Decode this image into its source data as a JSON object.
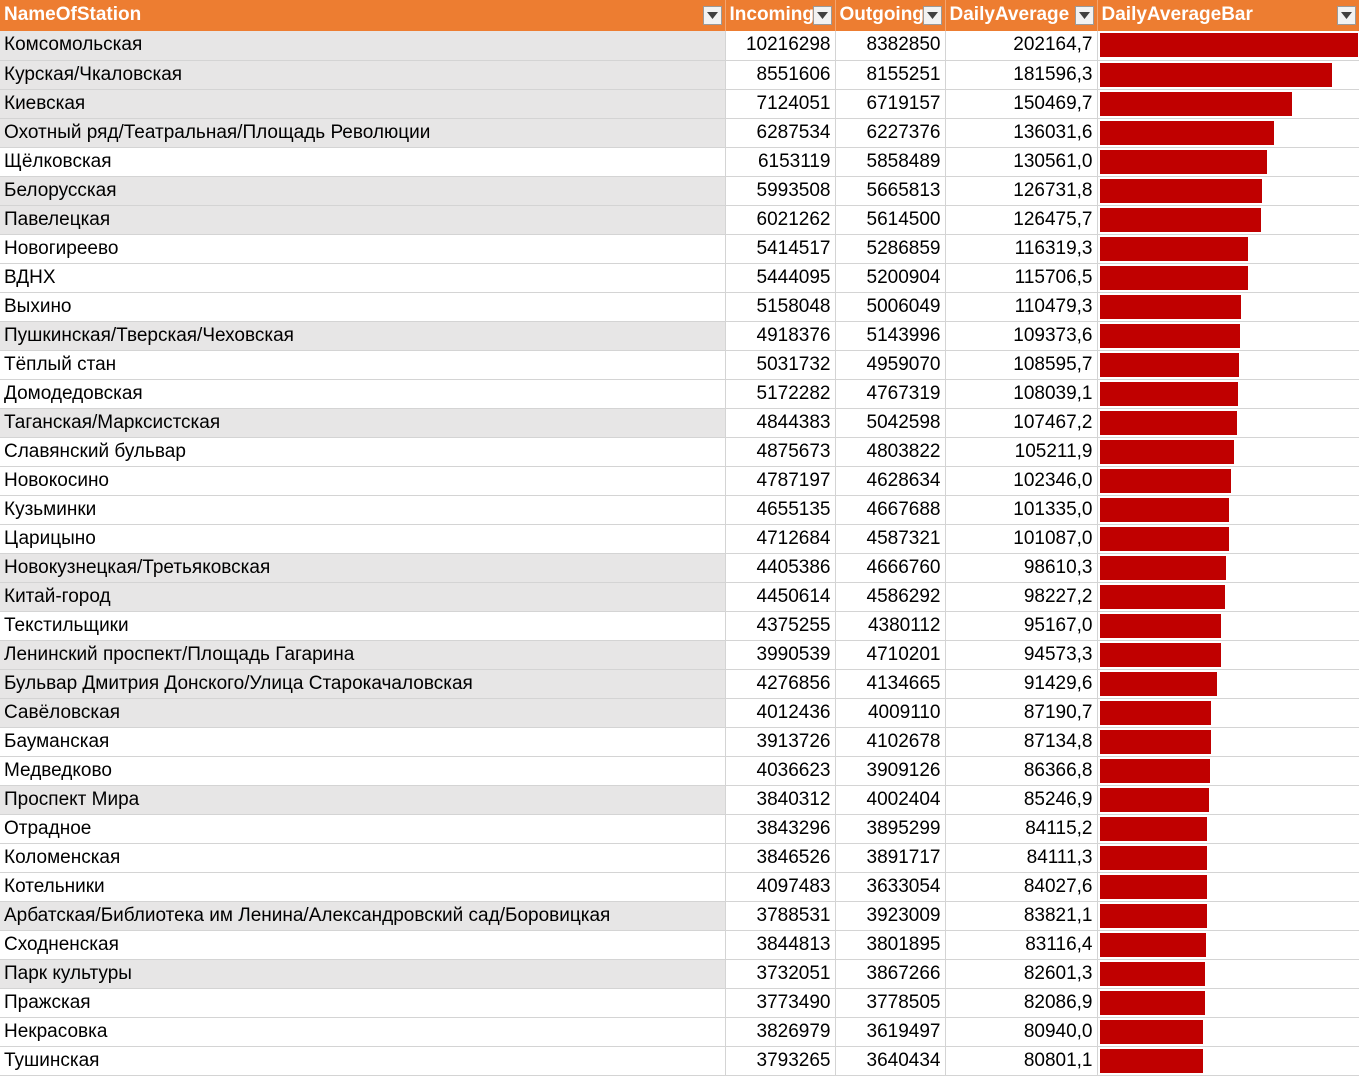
{
  "headers": [
    "NameOfStation",
    "Incoming",
    "Outgoing",
    "DailyAverage",
    "DailyAverageBar"
  ],
  "colors": {
    "header_bg": "#ED7D31",
    "bar": "#C00000",
    "shaded_cell": "#E7E6E6"
  },
  "bar_max": 202164.7,
  "rows": [
    {
      "name": "Комсомольская",
      "incoming": "10216298",
      "outgoing": "8382850",
      "daily": "202164,7",
      "value": 202164.7,
      "shaded": true
    },
    {
      "name": "Курская/Чкаловская",
      "incoming": "8551606",
      "outgoing": "8155251",
      "daily": "181596,3",
      "value": 181596.3,
      "shaded": true
    },
    {
      "name": "Киевская",
      "incoming": "7124051",
      "outgoing": "6719157",
      "daily": "150469,7",
      "value": 150469.7,
      "shaded": true
    },
    {
      "name": "Охотный ряд/Театральная/Площадь Революции",
      "incoming": "6287534",
      "outgoing": "6227376",
      "daily": "136031,6",
      "value": 136031.6,
      "shaded": true
    },
    {
      "name": "Щёлковская",
      "incoming": "6153119",
      "outgoing": "5858489",
      "daily": "130561,0",
      "value": 130561.0,
      "shaded": false
    },
    {
      "name": "Белорусская",
      "incoming": "5993508",
      "outgoing": "5665813",
      "daily": "126731,8",
      "value": 126731.8,
      "shaded": true
    },
    {
      "name": "Павелецкая",
      "incoming": "6021262",
      "outgoing": "5614500",
      "daily": "126475,7",
      "value": 126475.7,
      "shaded": true
    },
    {
      "name": "Новогиреево",
      "incoming": "5414517",
      "outgoing": "5286859",
      "daily": "116319,3",
      "value": 116319.3,
      "shaded": false
    },
    {
      "name": "ВДНХ",
      "incoming": "5444095",
      "outgoing": "5200904",
      "daily": "115706,5",
      "value": 115706.5,
      "shaded": false
    },
    {
      "name": "Выхино",
      "incoming": "5158048",
      "outgoing": "5006049",
      "daily": "110479,3",
      "value": 110479.3,
      "shaded": false
    },
    {
      "name": "Пушкинская/Тверская/Чеховская",
      "incoming": "4918376",
      "outgoing": "5143996",
      "daily": "109373,6",
      "value": 109373.6,
      "shaded": true
    },
    {
      "name": "Тёплый стан",
      "incoming": "5031732",
      "outgoing": "4959070",
      "daily": "108595,7",
      "value": 108595.7,
      "shaded": false
    },
    {
      "name": "Домодедовская",
      "incoming": "5172282",
      "outgoing": "4767319",
      "daily": "108039,1",
      "value": 108039.1,
      "shaded": false
    },
    {
      "name": "Таганская/Марксистская",
      "incoming": "4844383",
      "outgoing": "5042598",
      "daily": "107467,2",
      "value": 107467.2,
      "shaded": true
    },
    {
      "name": "Славянский бульвар",
      "incoming": "4875673",
      "outgoing": "4803822",
      "daily": "105211,9",
      "value": 105211.9,
      "shaded": false
    },
    {
      "name": "Новокосино",
      "incoming": "4787197",
      "outgoing": "4628634",
      "daily": "102346,0",
      "value": 102346.0,
      "shaded": false
    },
    {
      "name": "Кузьминки",
      "incoming": "4655135",
      "outgoing": "4667688",
      "daily": "101335,0",
      "value": 101335.0,
      "shaded": false
    },
    {
      "name": "Царицыно",
      "incoming": "4712684",
      "outgoing": "4587321",
      "daily": "101087,0",
      "value": 101087.0,
      "shaded": false
    },
    {
      "name": "Новокузнецкая/Третьяковская",
      "incoming": "4405386",
      "outgoing": "4666760",
      "daily": "98610,3",
      "value": 98610.3,
      "shaded": true
    },
    {
      "name": "Китай-город",
      "incoming": "4450614",
      "outgoing": "4586292",
      "daily": "98227,2",
      "value": 98227.2,
      "shaded": true
    },
    {
      "name": "Текстильщики",
      "incoming": "4375255",
      "outgoing": "4380112",
      "daily": "95167,0",
      "value": 95167.0,
      "shaded": false
    },
    {
      "name": "Ленинский проспект/Площадь Гагарина",
      "incoming": "3990539",
      "outgoing": "4710201",
      "daily": "94573,3",
      "value": 94573.3,
      "shaded": true
    },
    {
      "name": "Бульвар Дмитрия Донского/Улица Старокачаловская",
      "incoming": "4276856",
      "outgoing": "4134665",
      "daily": "91429,6",
      "value": 91429.6,
      "shaded": true
    },
    {
      "name": "Савёловская",
      "incoming": "4012436",
      "outgoing": "4009110",
      "daily": "87190,7",
      "value": 87190.7,
      "shaded": true
    },
    {
      "name": "Бауманская",
      "incoming": "3913726",
      "outgoing": "4102678",
      "daily": "87134,8",
      "value": 87134.8,
      "shaded": false
    },
    {
      "name": "Медведково",
      "incoming": "4036623",
      "outgoing": "3909126",
      "daily": "86366,8",
      "value": 86366.8,
      "shaded": false
    },
    {
      "name": "Проспект Мира",
      "incoming": "3840312",
      "outgoing": "4002404",
      "daily": "85246,9",
      "value": 85246.9,
      "shaded": true
    },
    {
      "name": "Отрадное",
      "incoming": "3843296",
      "outgoing": "3895299",
      "daily": "84115,2",
      "value": 84115.2,
      "shaded": false
    },
    {
      "name": "Коломенская",
      "incoming": "3846526",
      "outgoing": "3891717",
      "daily": "84111,3",
      "value": 84111.3,
      "shaded": false
    },
    {
      "name": "Котельники",
      "incoming": "4097483",
      "outgoing": "3633054",
      "daily": "84027,6",
      "value": 84027.6,
      "shaded": false
    },
    {
      "name": "Арбатская/Библиотека им Ленина/Александровский сад/Боровицкая",
      "incoming": "3788531",
      "outgoing": "3923009",
      "daily": "83821,1",
      "value": 83821.1,
      "shaded": true
    },
    {
      "name": "Сходненская",
      "incoming": "3844813",
      "outgoing": "3801895",
      "daily": "83116,4",
      "value": 83116.4,
      "shaded": false
    },
    {
      "name": "Парк культуры",
      "incoming": "3732051",
      "outgoing": "3867266",
      "daily": "82601,3",
      "value": 82601.3,
      "shaded": true
    },
    {
      "name": "Пражская",
      "incoming": "3773490",
      "outgoing": "3778505",
      "daily": "82086,9",
      "value": 82086.9,
      "shaded": false
    },
    {
      "name": "Некрасовка",
      "incoming": "3826979",
      "outgoing": "3619497",
      "daily": "80940,0",
      "value": 80940.0,
      "shaded": false
    },
    {
      "name": "Тушинская",
      "incoming": "3793265",
      "outgoing": "3640434",
      "daily": "80801,1",
      "value": 80801.1,
      "shaded": false
    }
  ]
}
